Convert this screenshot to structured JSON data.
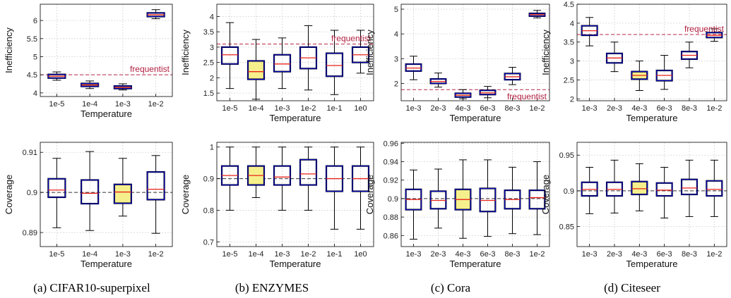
{
  "chart_data": [
    {
      "type": "box",
      "xlabel": "Temperature",
      "ylabel": "Inefficiency",
      "ylim": [
        3.9,
        6.45
      ],
      "yticks": [
        4,
        4.5,
        5,
        5.5,
        6
      ],
      "ytick_labels": [
        "4",
        "4.5",
        "5",
        "5.5",
        "6"
      ],
      "grid": true,
      "ref_value": 4.5,
      "ref_label": "frequentist",
      "highlight": "none",
      "categories": [
        "1e-5",
        "1e-4",
        "1e-3",
        "1e-2"
      ],
      "boxes": [
        {
          "min": 4.35,
          "q1": 4.41,
          "median": 4.46,
          "q3": 4.51,
          "max": 4.58
        },
        {
          "min": 4.12,
          "q1": 4.18,
          "median": 4.22,
          "q3": 4.26,
          "max": 4.33
        },
        {
          "min": 4.08,
          "q1": 4.12,
          "median": 4.15,
          "q3": 4.19,
          "max": 4.25
        },
        {
          "min": 6.05,
          "q1": 6.11,
          "median": 6.16,
          "q3": 6.21,
          "max": 6.3
        }
      ]
    },
    {
      "type": "box",
      "xlabel": "Temperature",
      "ylabel": "Inefficiency",
      "ylim": [
        1.25,
        4.4
      ],
      "yticks": [
        1.5,
        2,
        2.5,
        3,
        3.5,
        4
      ],
      "ytick_labels": [
        "1.5",
        "2",
        "2.5",
        "3",
        "3.5",
        "4"
      ],
      "grid": true,
      "ref_value": 3.1,
      "ref_label": "frequentist",
      "highlight": "1e-4",
      "categories": [
        "1e-5",
        "1e-4",
        "1e-3",
        "1e-2",
        "1e-1",
        "1e0"
      ],
      "boxes": [
        {
          "min": 1.65,
          "q1": 2.45,
          "median": 2.75,
          "q3": 3.0,
          "max": 3.8
        },
        {
          "min": 1.3,
          "q1": 1.95,
          "median": 2.2,
          "q3": 2.55,
          "max": 3.25
        },
        {
          "min": 1.65,
          "q1": 2.2,
          "median": 2.45,
          "q3": 2.75,
          "max": 3.3
        },
        {
          "min": 1.6,
          "q1": 2.3,
          "median": 2.65,
          "q3": 3.0,
          "max": 3.7
        },
        {
          "min": 1.45,
          "q1": 2.05,
          "median": 2.4,
          "q3": 2.8,
          "max": 3.55
        },
        {
          "min": 2.15,
          "q1": 2.5,
          "median": 2.75,
          "q3": 3.0,
          "max": 3.55
        }
      ]
    },
    {
      "type": "box",
      "xlabel": "Temperature",
      "ylabel": "Inefficiency",
      "ylim": [
        1.3,
        5.2
      ],
      "yticks": [
        2,
        3,
        4,
        5
      ],
      "ytick_labels": [
        "2",
        "3",
        "4",
        "5"
      ],
      "grid": true,
      "ref_value": 1.75,
      "ref_label": "frequentist",
      "highlight": "none",
      "categories": [
        "1e-3",
        "2e-3",
        "4e-3",
        "6e-3",
        "8e-3",
        "1e-2"
      ],
      "boxes": [
        {
          "min": 2.15,
          "q1": 2.5,
          "median": 2.62,
          "q3": 2.78,
          "max": 3.1
        },
        {
          "min": 1.85,
          "q1": 2.0,
          "median": 2.08,
          "q3": 2.18,
          "max": 2.42
        },
        {
          "min": 1.38,
          "q1": 1.45,
          "median": 1.52,
          "q3": 1.6,
          "max": 1.75
        },
        {
          "min": 1.42,
          "q1": 1.55,
          "median": 1.62,
          "q3": 1.72,
          "max": 1.88
        },
        {
          "min": 1.95,
          "q1": 2.15,
          "median": 2.27,
          "q3": 2.4,
          "max": 2.65
        },
        {
          "min": 4.65,
          "q1": 4.72,
          "median": 4.78,
          "q3": 4.83,
          "max": 4.95
        }
      ]
    },
    {
      "type": "box",
      "xlabel": "Temperature",
      "ylabel": "Inefficiency",
      "ylim": [
        1.95,
        4.5
      ],
      "yticks": [
        2,
        2.5,
        3,
        3.5,
        4,
        4.5
      ],
      "ytick_labels": [
        "2",
        "2.5",
        "3",
        "3.5",
        "4",
        "4.5"
      ],
      "grid": true,
      "ref_value": 3.7,
      "ref_label": "frequentist",
      "highlight": "4e-3",
      "categories": [
        "1e-3",
        "2e-3",
        "4e-3",
        "6e-3",
        "8e-3",
        "1e-2"
      ],
      "boxes": [
        {
          "min": 3.4,
          "q1": 3.68,
          "median": 3.8,
          "q3": 3.93,
          "max": 4.15
        },
        {
          "min": 2.72,
          "q1": 2.95,
          "median": 3.08,
          "q3": 3.2,
          "max": 3.5
        },
        {
          "min": 2.22,
          "q1": 2.52,
          "median": 2.62,
          "q3": 2.72,
          "max": 3.0
        },
        {
          "min": 2.25,
          "q1": 2.48,
          "median": 2.62,
          "q3": 2.75,
          "max": 3.15
        },
        {
          "min": 2.82,
          "q1": 3.05,
          "median": 3.15,
          "q3": 3.25,
          "max": 3.5
        },
        {
          "min": 3.52,
          "q1": 3.62,
          "median": 3.68,
          "q3": 3.75,
          "max": 3.85
        }
      ]
    },
    {
      "type": "box",
      "xlabel": "Temperature",
      "ylabel": "Coverage",
      "ylim": [
        0.8865,
        0.9125
      ],
      "yticks": [
        0.89,
        0.9,
        0.91
      ],
      "ytick_labels": [
        "0.89",
        "0.9",
        "0.91"
      ],
      "grid": true,
      "ref_value": 0.9,
      "ref_label": "",
      "highlight": "1e-3",
      "categories": [
        "1e-5",
        "1e-4",
        "1e-3",
        "1e-2"
      ],
      "boxes": [
        {
          "min": 0.8912,
          "q1": 0.8988,
          "median": 0.9006,
          "q3": 0.9034,
          "max": 0.9085
        },
        {
          "min": 0.8905,
          "q1": 0.8972,
          "median": 0.8998,
          "q3": 0.9031,
          "max": 0.9102
        },
        {
          "min": 0.8941,
          "q1": 0.8973,
          "median": 0.9001,
          "q3": 0.902,
          "max": 0.9085
        },
        {
          "min": 0.8898,
          "q1": 0.8982,
          "median": 0.9008,
          "q3": 0.9051,
          "max": 0.9092
        }
      ]
    },
    {
      "type": "box",
      "xlabel": "Temperature",
      "ylabel": "Coverage",
      "ylim": [
        0.685,
        1.015
      ],
      "yticks": [
        0.7,
        0.8,
        0.9,
        1
      ],
      "ytick_labels": [
        "0.7",
        "0.8",
        "0.9",
        "1"
      ],
      "grid": true,
      "ref_value": 0.9,
      "ref_label": "",
      "highlight": "1e-4",
      "categories": [
        "1e-5",
        "1e-4",
        "1e-3",
        "1e-2",
        "1e-1",
        "1e0"
      ],
      "boxes": [
        {
          "min": 0.8,
          "q1": 0.88,
          "median": 0.91,
          "q3": 0.94,
          "max": 1.0
        },
        {
          "min": 0.84,
          "q1": 0.88,
          "median": 0.91,
          "q3": 0.94,
          "max": 1.0
        },
        {
          "min": 0.8,
          "q1": 0.88,
          "median": 0.905,
          "q3": 0.94,
          "max": 1.0
        },
        {
          "min": 0.8,
          "q1": 0.88,
          "median": 0.915,
          "q3": 0.96,
          "max": 1.0
        },
        {
          "min": 0.74,
          "q1": 0.86,
          "median": 0.9,
          "q3": 0.94,
          "max": 1.0
        },
        {
          "min": 0.74,
          "q1": 0.86,
          "median": 0.9,
          "q3": 0.94,
          "max": 1.0
        }
      ]
    },
    {
      "type": "box",
      "xlabel": "Temperature",
      "ylabel": "Coverage",
      "ylim": [
        0.848,
        0.961
      ],
      "yticks": [
        0.86,
        0.88,
        0.9,
        0.92,
        0.94,
        0.96
      ],
      "ytick_labels": [
        "0.86",
        "0.88",
        "0.9",
        "0.92",
        "0.94",
        "0.96"
      ],
      "grid": true,
      "ref_value": 0.9,
      "ref_label": "",
      "highlight": "4e-3",
      "categories": [
        "1e-3",
        "2e-3",
        "4e-3",
        "6e-3",
        "8e-3",
        "1e-2"
      ],
      "boxes": [
        {
          "min": 0.856,
          "q1": 0.888,
          "median": 0.899,
          "q3": 0.91,
          "max": 0.931
        },
        {
          "min": 0.868,
          "q1": 0.889,
          "median": 0.898,
          "q3": 0.908,
          "max": 0.932
        },
        {
          "min": 0.857,
          "q1": 0.888,
          "median": 0.899,
          "q3": 0.91,
          "max": 0.942
        },
        {
          "min": 0.859,
          "q1": 0.886,
          "median": 0.898,
          "q3": 0.911,
          "max": 0.942
        },
        {
          "min": 0.862,
          "q1": 0.889,
          "median": 0.899,
          "q3": 0.909,
          "max": 0.934
        },
        {
          "min": 0.861,
          "q1": 0.889,
          "median": 0.901,
          "q3": 0.909,
          "max": 0.94
        }
      ]
    },
    {
      "type": "box",
      "xlabel": "Temperature",
      "ylabel": "Coverage",
      "ylim": [
        0.822,
        0.968
      ],
      "yticks": [
        0.85,
        0.9,
        0.95
      ],
      "ytick_labels": [
        "0.85",
        "0.9",
        "0.95"
      ],
      "grid": true,
      "ref_value": 0.9,
      "ref_label": "",
      "highlight": "4e-3",
      "categories": [
        "1e-3",
        "2e-3",
        "4e-3",
        "6e-3",
        "8e-3",
        "1e-2"
      ],
      "boxes": [
        {
          "min": 0.868,
          "q1": 0.893,
          "median": 0.902,
          "q3": 0.912,
          "max": 0.933
        },
        {
          "min": 0.869,
          "q1": 0.893,
          "median": 0.902,
          "q3": 0.912,
          "max": 0.943
        },
        {
          "min": 0.872,
          "q1": 0.895,
          "median": 0.903,
          "q3": 0.913,
          "max": 0.938
        },
        {
          "min": 0.862,
          "q1": 0.893,
          "median": 0.901,
          "q3": 0.911,
          "max": 0.933
        },
        {
          "min": 0.864,
          "q1": 0.895,
          "median": 0.904,
          "q3": 0.916,
          "max": 0.943
        },
        {
          "min": 0.864,
          "q1": 0.893,
          "median": 0.902,
          "q3": 0.914,
          "max": 0.943
        }
      ]
    }
  ],
  "captions": [
    "(a) CIFAR10-superpixel",
    "(b) ENZYMES",
    "(c) Cora",
    "(d) Citeseer"
  ],
  "colors": {
    "box_edge": "#0a0ad2",
    "median": "#e8241c",
    "highlight_fill": "#f5f08c",
    "ref_line": "#b8284a",
    "coverage_ref_line": "#333333",
    "grid": "#d4d4d4",
    "whisker": "#000000"
  }
}
